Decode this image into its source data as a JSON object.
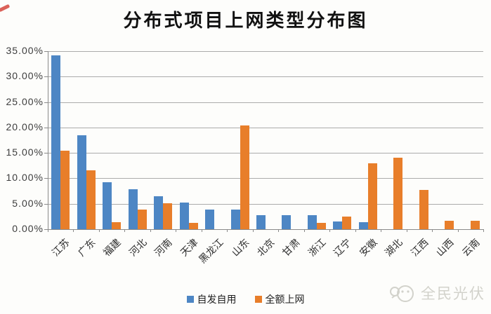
{
  "title": "分布式项目上网类型分布图",
  "legend": {
    "items": [
      {
        "label": "自发自用",
        "color": "#4D86C4"
      },
      {
        "label": "全额上网",
        "color": "#E87E2A"
      }
    ]
  },
  "watermark": {
    "text": "全民光伏",
    "logo": "chat-face-logo"
  },
  "y_axis": {
    "tick_labels": [
      "0.00%",
      "5.00%",
      "10.00%",
      "15.00%",
      "20.00%",
      "25.00%",
      "30.00%",
      "35.00%"
    ]
  },
  "chart_data": {
    "type": "bar",
    "title": "分布式项目上网类型分布图",
    "categories": [
      "江苏",
      "广东",
      "福建",
      "河北",
      "河南",
      "天津",
      "黑龙江",
      "山东",
      "北京",
      "甘肃",
      "浙江",
      "辽宁",
      "安徽",
      "湖北",
      "江西",
      "山西",
      "云南"
    ],
    "series": [
      {
        "name": "自发自用",
        "color": "#4D86C4",
        "values": [
          34.2,
          18.4,
          9.2,
          7.9,
          6.5,
          5.3,
          3.9,
          3.9,
          2.7,
          2.7,
          2.7,
          1.5,
          1.4,
          0,
          0,
          0,
          0
        ]
      },
      {
        "name": "全额上网",
        "color": "#E87E2A",
        "values": [
          15.4,
          11.6,
          1.4,
          3.9,
          5.1,
          1.3,
          0,
          20.4,
          0,
          0,
          1.3,
          2.5,
          12.9,
          14.1,
          7.7,
          1.6,
          1.6
        ]
      }
    ],
    "xlabel": "",
    "ylabel": "",
    "ylim": [
      0,
      35
    ],
    "ytick_step": 5,
    "ytick_format": "percent-2dp",
    "grid": true,
    "legend_position": "bottom"
  },
  "colors": {
    "grid": "#ababab",
    "axis": "#8a8a8a",
    "background": "#fdfdfb",
    "corner_mark": "#d5463c",
    "watermark": "#d2d2cb"
  }
}
